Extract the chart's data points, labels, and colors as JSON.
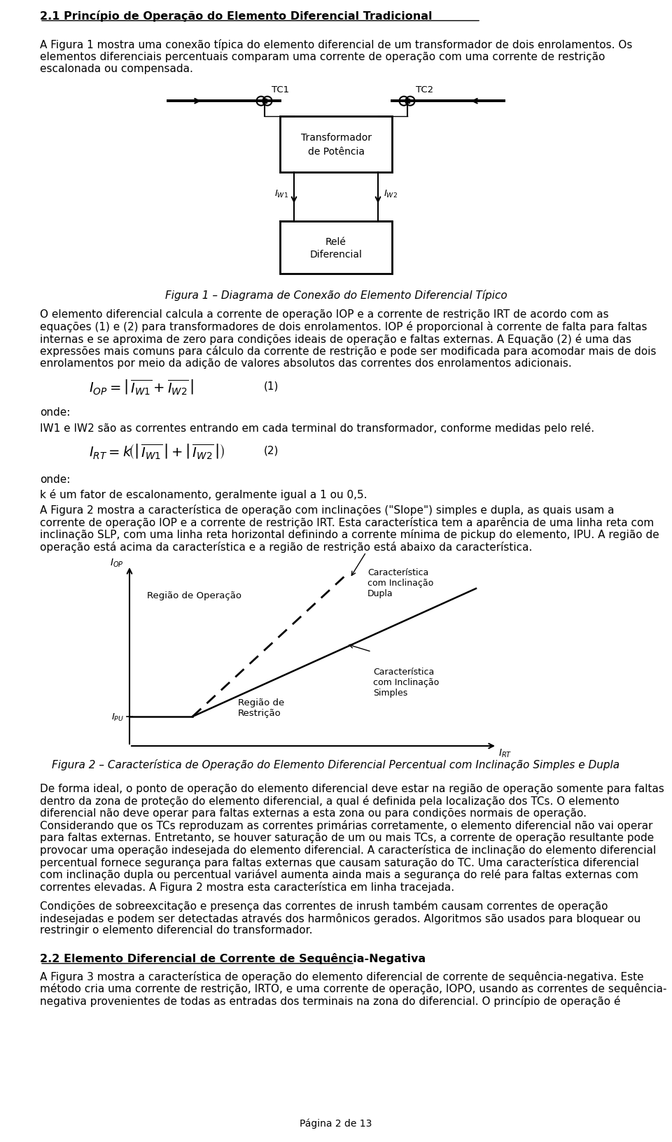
{
  "page_bg": "#ffffff",
  "heading": "2.1 Princípio de Operação do Elemento Diferencial Tradicional",
  "para1_lines": [
    "A Figura 1 mostra uma conexão típica do elemento diferencial de um transformador de dois enrolamentos. Os",
    "elementos diferenciais percentuais comparam uma corrente de operação com uma corrente de restrição",
    "escalonada ou compensada."
  ],
  "fig1_caption": "Figura 1 – Diagrama de Conexão do Elemento Diferencial Típico",
  "para2_lines": [
    "O elemento diferencial calcula a corrente de operação IOP e a corrente de restrição IRT de acordo com as",
    "equações (1) e (2) para transformadores de dois enrolamentos. IOP é proporcional à corrente de falta para faltas",
    "internas e se aproxima de zero para condições ideais de operação e faltas externas. A Equação (2) é uma das",
    "expressões mais comuns para cálculo da corrente de restrição e pode ser modificada para acomodar mais de dois",
    "enrolamentos por meio da adição de valores absolutos das correntes dos enrolamentos adicionais."
  ],
  "eq1_label": "(1)",
  "eq2_label": "(2)",
  "onde1": "onde:",
  "iw1iw2_text": "IW1 e IW2 são as correntes entrando em cada terminal do transformador, conforme medidas pelo relé.",
  "onde2": "onde:",
  "k_text": "k é um fator de escalonamento, geralmente igual a 1 ou 0,5.",
  "para3_lines": [
    "A Figura 2 mostra a característica de operação com inclinações (\"Slope\") simples e dupla, as quais usam a",
    "corrente de operação IOP e a corrente de restrição IRT. Esta característica tem a aparência de uma linha reta com",
    "inclinação SLP, com uma linha reta horizontal definindo a corrente mínima de pickup do elemento, IPU. A região de",
    "operação está acima da característica e a região de restrição está abaixo da característica."
  ],
  "fig2_caption": "Figura 2 – Característica de Operação do Elemento Diferencial Percentual com Inclinação Simples e Dupla",
  "para4_lines": [
    "De forma ideal, o ponto de operação do elemento diferencial deve estar na região de operação somente para faltas",
    "dentro da zona de proteção do elemento diferencial, a qual é definida pela localização dos TCs. O elemento",
    "diferencial não deve operar para faltas externas a esta zona ou para condições normais de operação.",
    "Considerando que os TCs reproduzam as correntes primárias corretamente, o elemento diferencial não vai operar",
    "para faltas externas. Entretanto, se houver saturação de um ou mais TCs, a corrente de operação resultante pode",
    "provocar uma operação indesejada do elemento diferencial. A característica de inclinação do elemento diferencial",
    "percentual fornece segurança para faltas externas que causam saturação do TC. Uma característica diferencial",
    "com inclinação dupla ou percentual variável aumenta ainda mais a segurança do relé para faltas externas com",
    "correntes elevadas. A Figura 2 mostra esta característica em linha tracejada."
  ],
  "para5_lines": [
    "Condições de sobreexcitação e presença das correntes de inrush também causam correntes de operação",
    "indesejadas e podem ser detectadas através dos harmônicos gerados. Algoritmos são usados para bloquear ou",
    "restringir o elemento diferencial do transformador."
  ],
  "heading2": "2.2 Elemento Diferencial de Corrente de Sequência-Negativa",
  "para6_lines": [
    "A Figura 3 mostra a característica de operação do elemento diferencial de corrente de sequência-negativa. Este",
    "método cria uma corrente de restrição, IRTO, e uma corrente de operação, IOPO, usando as correntes de sequência-",
    "negativa provenientes de todas as entradas dos terminais na zona do diferencial. O princípio de operação é"
  ],
  "page_footer": "Página 2 de 13"
}
